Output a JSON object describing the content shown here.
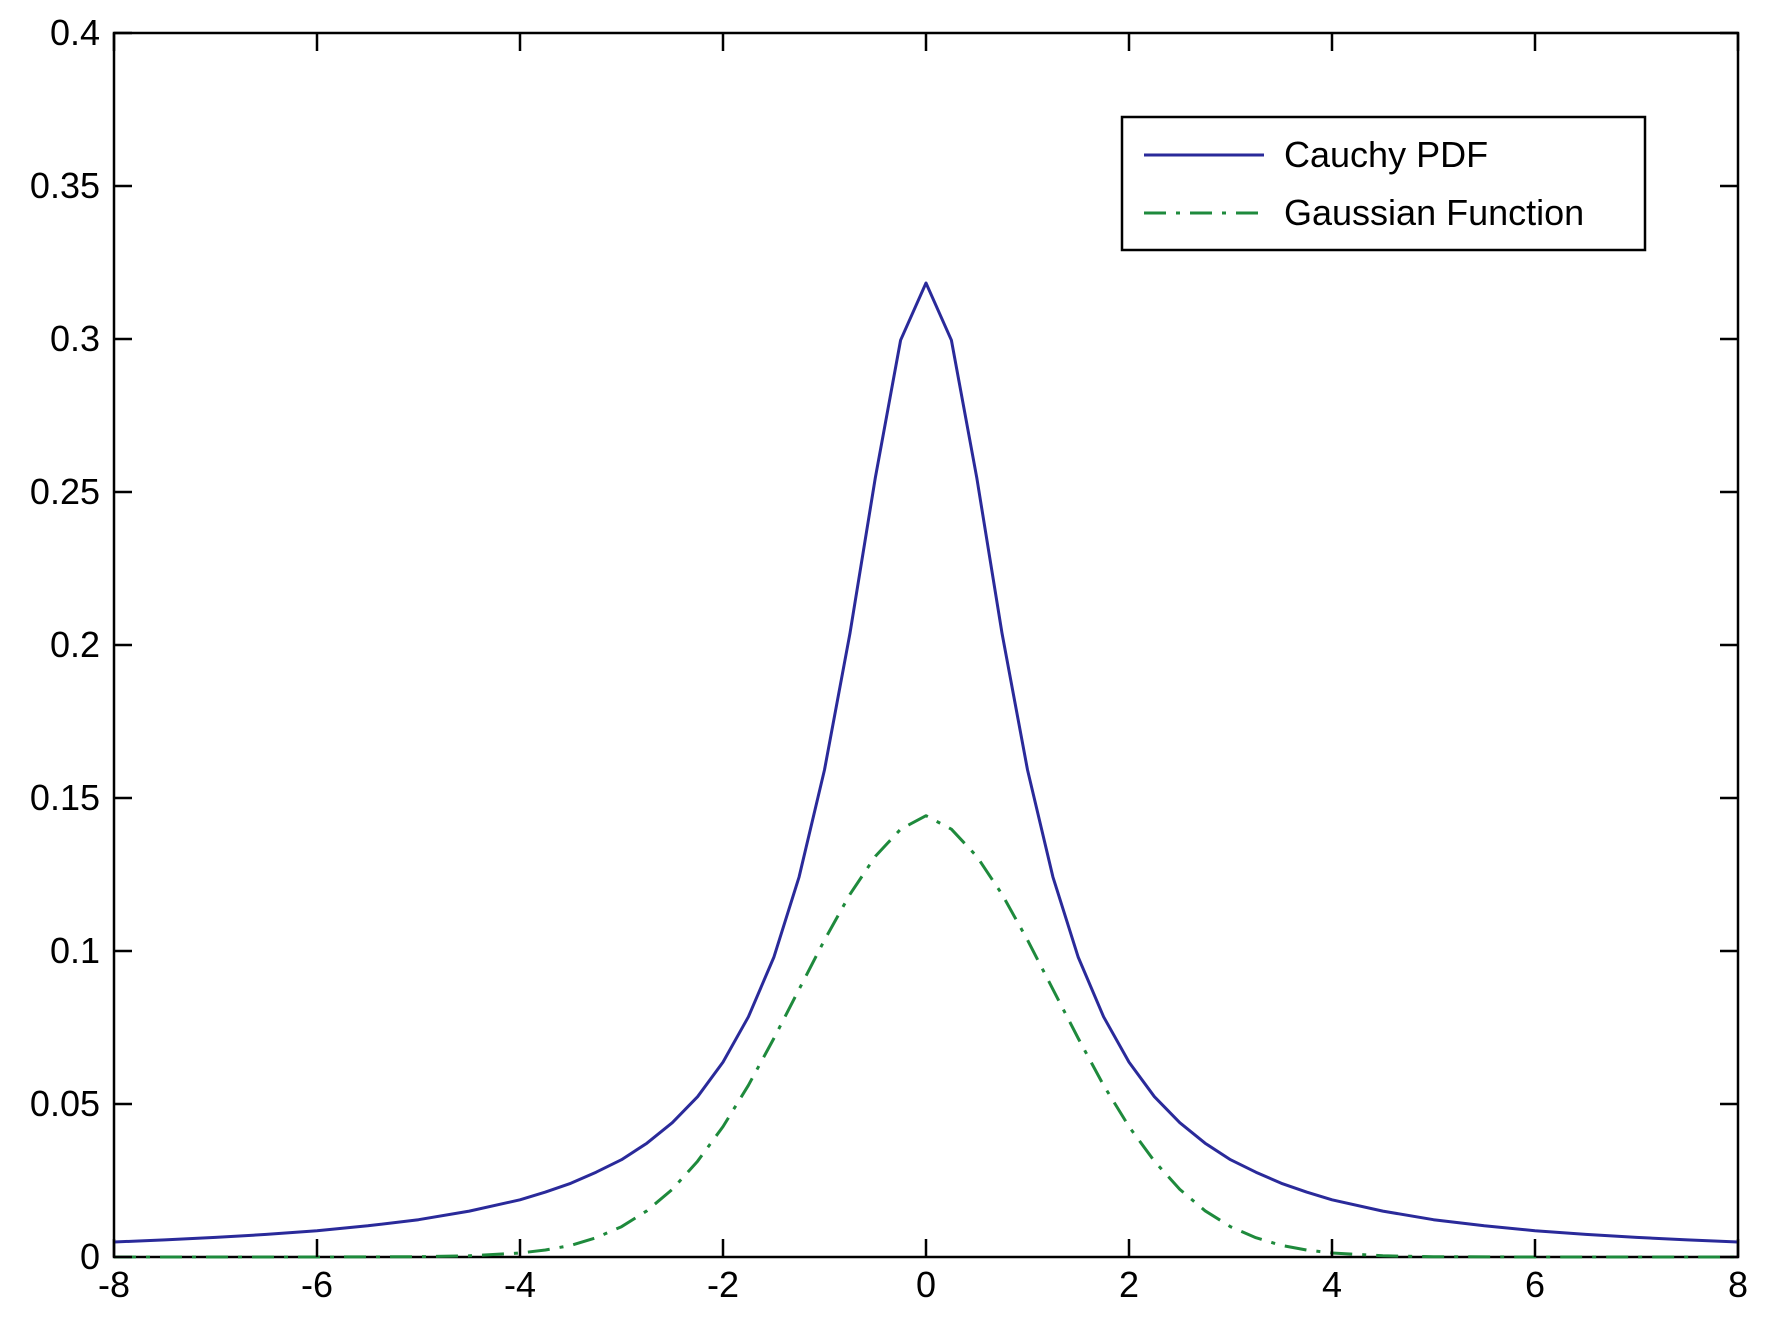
{
  "chart_data": {
    "type": "line",
    "title": "",
    "xlabel": "",
    "ylabel": "",
    "xlim": [
      -8,
      8
    ],
    "ylim": [
      0,
      0.4
    ],
    "x_ticks": [
      -8,
      -6,
      -4,
      -2,
      0,
      2,
      4,
      6,
      8
    ],
    "x_tick_labels": [
      "-8",
      "-6",
      "-4",
      "-2",
      "0",
      "2",
      "4",
      "6",
      "8"
    ],
    "y_ticks": [
      0,
      0.05,
      0.1,
      0.15,
      0.2,
      0.25,
      0.3,
      0.35,
      0.4
    ],
    "y_tick_labels": [
      "0",
      "0.05",
      "0.1",
      "0.15",
      "0.2",
      "0.25",
      "0.3",
      "0.35",
      "0.4"
    ],
    "grid": false,
    "legend_position": "top-right",
    "series": [
      {
        "name": "Cauchy PDF",
        "color": "#2a2a9a",
        "line_style": "solid",
        "x": [
          -8,
          -7.5,
          -7,
          -6.5,
          -6,
          -5.5,
          -5,
          -4.5,
          -4,
          -3.75,
          -3.5,
          -3.25,
          -3,
          -2.75,
          -2.5,
          -2.25,
          -2,
          -1.75,
          -1.5,
          -1.25,
          -1,
          -0.75,
          -0.5,
          -0.25,
          0,
          0.25,
          0.5,
          0.75,
          1,
          1.25,
          1.5,
          1.75,
          2,
          2.25,
          2.5,
          2.75,
          3,
          3.25,
          3.5,
          3.75,
          4,
          4.5,
          5,
          5.5,
          6,
          6.5,
          7,
          7.5,
          8
        ],
        "y": [
          0.0049,
          0.0056,
          0.0064,
          0.0074,
          0.0086,
          0.0102,
          0.0122,
          0.015,
          0.0187,
          0.0212,
          0.0241,
          0.0277,
          0.0318,
          0.0372,
          0.0439,
          0.0524,
          0.0637,
          0.0785,
          0.0979,
          0.1242,
          0.1592,
          0.2037,
          0.2546,
          0.2996,
          0.3183,
          0.2996,
          0.2546,
          0.2037,
          0.1592,
          0.1242,
          0.0979,
          0.0785,
          0.0637,
          0.0524,
          0.0439,
          0.0372,
          0.0318,
          0.0277,
          0.0241,
          0.0212,
          0.0187,
          0.015,
          0.0122,
          0.0102,
          0.0086,
          0.0074,
          0.0064,
          0.0056,
          0.0049
        ]
      },
      {
        "name": "Gaussian Function",
        "color": "#1e8a3c",
        "line_style": "dash-dot",
        "x": [
          -8,
          -7,
          -6,
          -5,
          -4.5,
          -4,
          -3.75,
          -3.5,
          -3.25,
          -3,
          -2.75,
          -2.5,
          -2.25,
          -2,
          -1.75,
          -1.5,
          -1.25,
          -1,
          -0.75,
          -0.5,
          -0.25,
          0,
          0.25,
          0.5,
          0.75,
          1,
          1.25,
          1.5,
          1.75,
          2,
          2.25,
          2.5,
          2.75,
          3,
          3.25,
          3.5,
          3.75,
          4,
          4.5,
          5,
          6,
          7,
          8
        ],
        "y": [
          0.0,
          0.0,
          0.0,
          0.0001,
          0.0004,
          0.0013,
          0.0023,
          0.0038,
          0.0063,
          0.0099,
          0.0151,
          0.0221,
          0.0313,
          0.0426,
          0.0561,
          0.0714,
          0.0875,
          0.1036,
          0.1185,
          0.1309,
          0.1398,
          0.1442,
          0.1398,
          0.1309,
          0.1185,
          0.1036,
          0.0875,
          0.0714,
          0.0561,
          0.0426,
          0.0313,
          0.0221,
          0.0151,
          0.0099,
          0.0063,
          0.0038,
          0.0023,
          0.0013,
          0.0004,
          0.0001,
          0.0,
          0.0,
          0.0
        ]
      }
    ]
  }
}
